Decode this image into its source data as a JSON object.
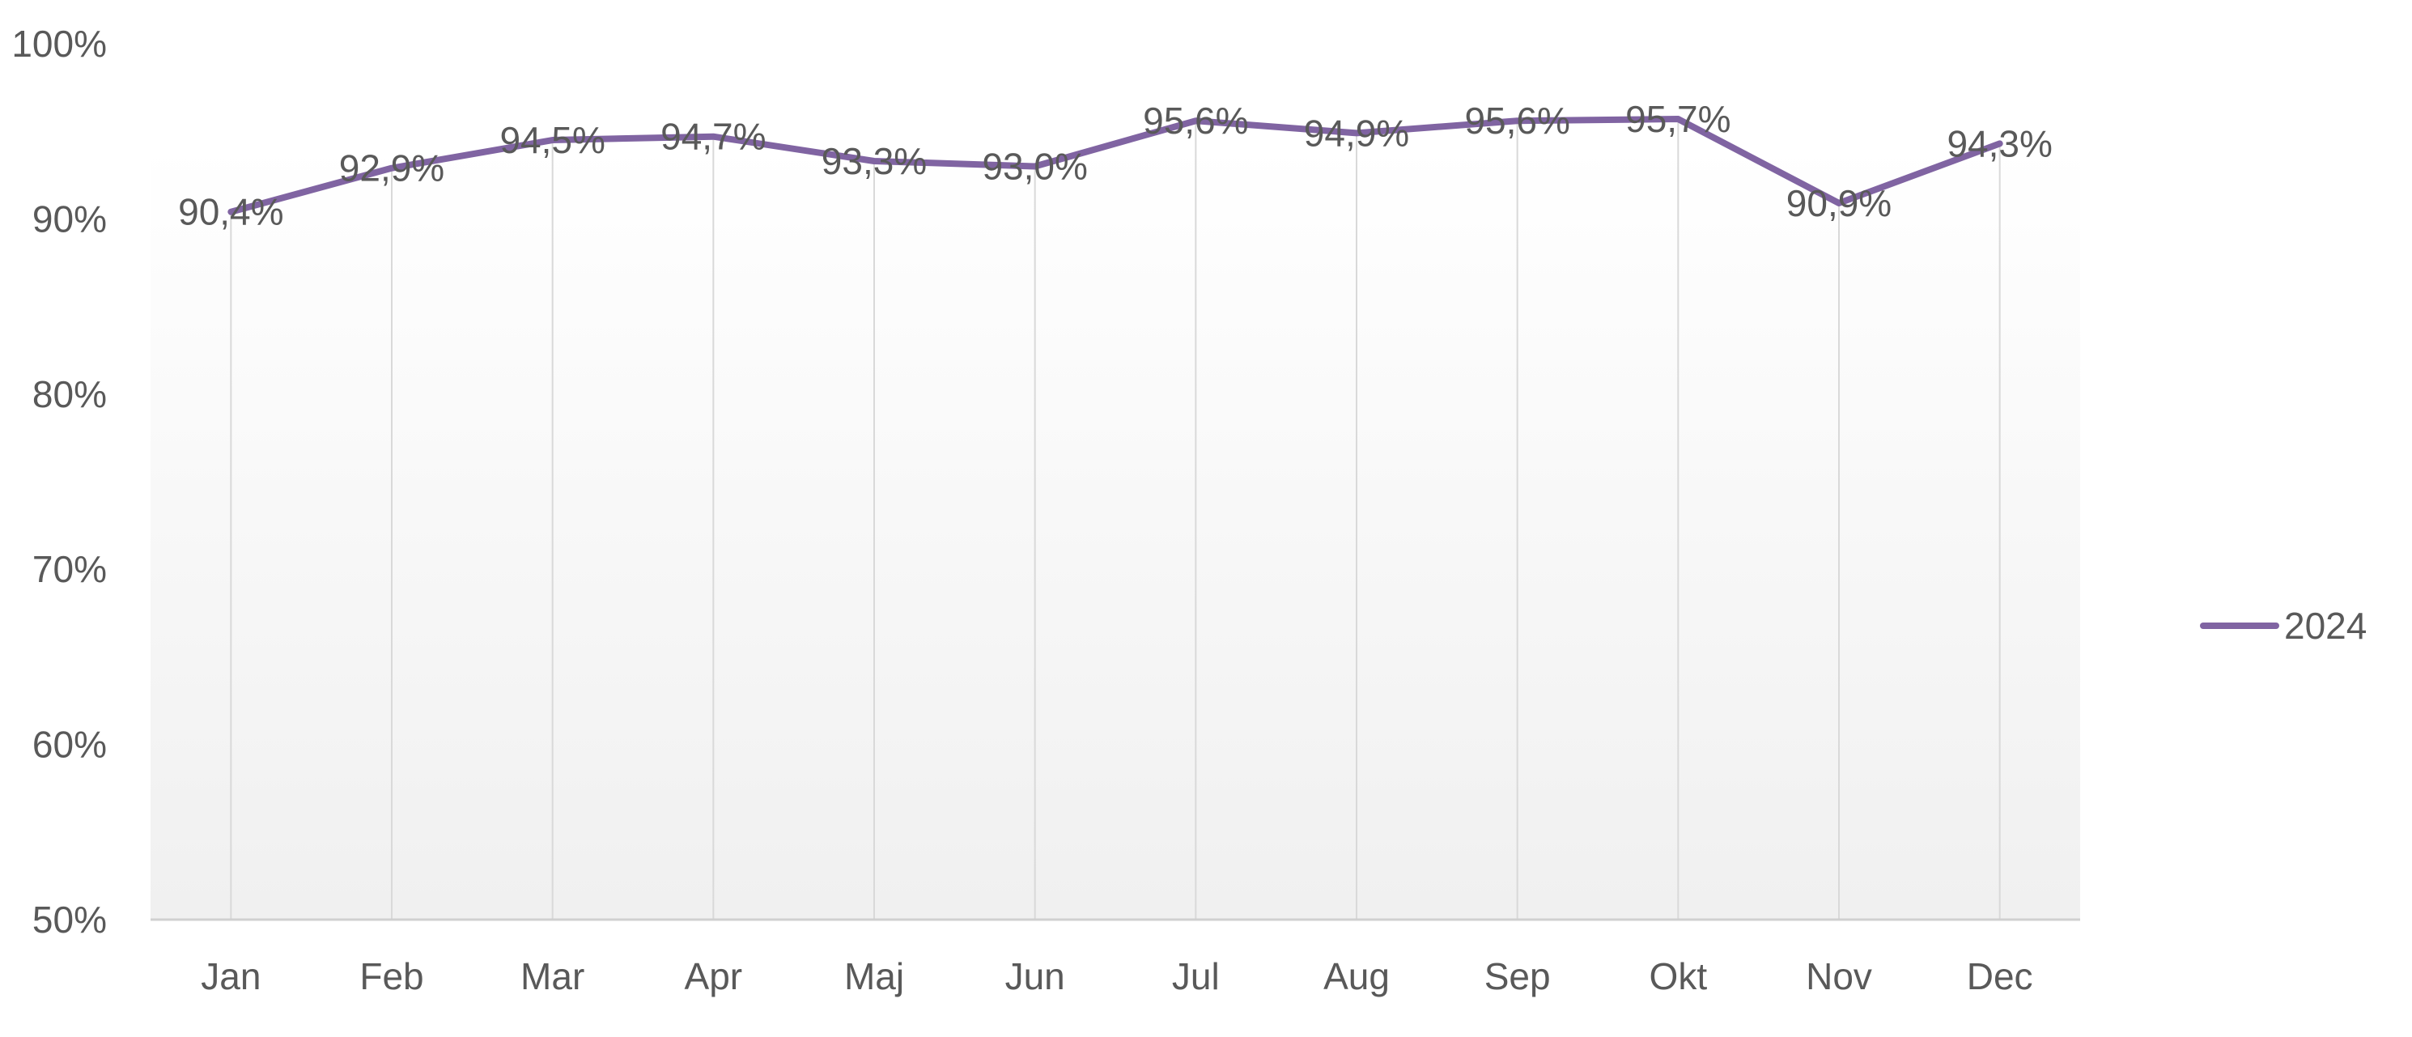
{
  "chart_data": {
    "type": "line",
    "categories": [
      "Jan",
      "Feb",
      "Mar",
      "Apr",
      "Maj",
      "Jun",
      "Jul",
      "Aug",
      "Sep",
      "Okt",
      "Nov",
      "Dec"
    ],
    "series": [
      {
        "name": "2024",
        "values": [
          90.4,
          92.9,
          94.5,
          94.7,
          93.3,
          93.0,
          95.6,
          94.9,
          95.6,
          95.7,
          90.9,
          94.3
        ],
        "labels": [
          "90,4%",
          "92,9%",
          "94,5%",
          "94,7%",
          "93,3%",
          "93,0%",
          "95,6%",
          "94,9%",
          "95,6%",
          "95,7%",
          "90,9%",
          "94,3%"
        ],
        "color": "#8064a2"
      }
    ],
    "ylim": [
      50,
      100
    ],
    "yticks": [
      50,
      60,
      70,
      80,
      90,
      100
    ],
    "ytick_labels": [
      "50%",
      "60%",
      "70%",
      "80%",
      "90%",
      "100%"
    ],
    "title": "",
    "xlabel": "",
    "ylabel": "",
    "grid": "vertical",
    "legend": "right",
    "colors": {
      "text": "#595959",
      "gridline": "#d9d9d9",
      "axis": "#d0d0d0",
      "plot_bg_top": "#ffffff",
      "plot_bg_bottom": "#f0f0f0"
    }
  }
}
